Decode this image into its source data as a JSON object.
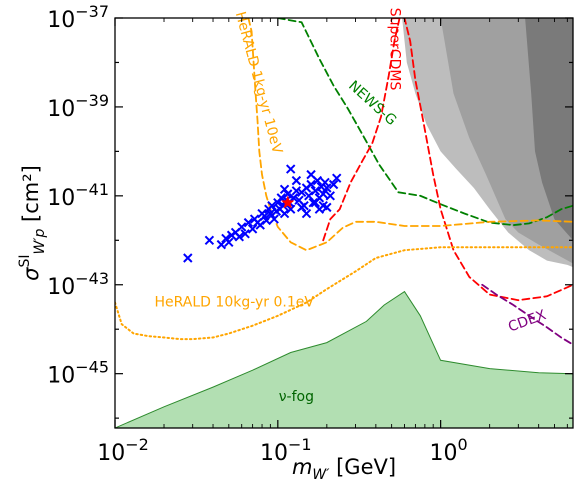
{
  "chart_data": {
    "type": "scatter",
    "title": "",
    "xscale": "log",
    "yscale": "log",
    "xlim": [
      0.01,
      6.5
    ],
    "ylim": [
      6e-47,
      1e-37
    ],
    "grid": false,
    "xlabel": {
      "base": "m",
      "sub": "W′",
      "unit": "[GeV]"
    },
    "ylabel": {
      "base": "σ",
      "sup": "SI",
      "sub": "W′p",
      "unit": "[cm²]"
    },
    "x_ticks": [
      {
        "value": 0.01,
        "base": "10",
        "exp": "−2"
      },
      {
        "value": 0.1,
        "base": "10",
        "exp": "−1"
      },
      {
        "value": 1,
        "base": "10",
        "exp": "0"
      }
    ],
    "y_ticks": [
      {
        "value": 1e-45,
        "base": "10",
        "exp": "−45"
      },
      {
        "value": 1e-43,
        "base": "10",
        "exp": "−43"
      },
      {
        "value": 1e-41,
        "base": "10",
        "exp": "−41"
      },
      {
        "value": 1e-39,
        "base": "10",
        "exp": "−39"
      },
      {
        "value": 1e-37,
        "base": "10",
        "exp": "−37"
      }
    ],
    "colors": {
      "scatter": "#0000ff",
      "benchmark": "#ff0000",
      "newsg": "#008000",
      "supercdms": "#ff0000",
      "herald": "#ffa500",
      "cdex": "#800080",
      "nufog_fill": "#b2dfb2",
      "nufog_edge": "#2e8b2e",
      "excl_light": "#bdbdbd",
      "excl_mid": "#a0a0a0",
      "excl_dark": "#7a7a7a"
    },
    "annotations": [
      {
        "key": "newsg",
        "text": "NEWS-G",
        "color": "#008000",
        "x": 0.38,
        "y": 1.2e-39,
        "rotate": 42
      },
      {
        "key": "supercdms",
        "text": "SuperCDMS",
        "color": "#ff0000",
        "x": 0.52,
        "y": 2e-38,
        "rotate": 90
      },
      {
        "key": "herald1",
        "text": "HeRALD 1kg-yr 10eV",
        "color": "#ffa500",
        "x": 0.076,
        "y": 3.5e-39,
        "rotate": 75
      },
      {
        "key": "herald2",
        "text": "HeRALD 10kg-yr 0.1eV",
        "color": "#ffa500",
        "x": 0.054,
        "y": 4e-44,
        "rotate": 0
      },
      {
        "key": "cdex",
        "text": "CDEX",
        "color": "#800080",
        "x": 3.4,
        "y": 1.5e-44,
        "rotate": -20
      },
      {
        "key": "nufog",
        "text": "ν-fog",
        "color": "#006400",
        "x": 0.13,
        "y": 3e-46,
        "rotate": 0
      }
    ],
    "series": [
      {
        "type": "exclusion-fill",
        "shade": "light",
        "x": [
          0.58,
          6.5,
          6.5,
          6.0,
          4.5,
          3.5,
          2.6,
          2.0,
          1.6,
          1.25,
          1.0,
          0.82,
          0.7,
          0.62,
          0.58
        ],
        "y": [
          1e-37,
          1e-37,
          2.5e-43,
          2.8e-43,
          3.5e-43,
          6e-43,
          1.5e-42,
          5e-42,
          1.5e-41,
          4e-41,
          1e-40,
          4e-40,
          2e-39,
          1e-38,
          1e-37
        ]
      },
      {
        "type": "exclusion-fill",
        "shade": "mid",
        "x": [
          1.0,
          6.5,
          6.5,
          4.0,
          3.0,
          2.5,
          1.9,
          1.5,
          1.2,
          1.0
        ],
        "y": [
          1e-37,
          1e-37,
          3e-43,
          8e-43,
          1.5e-42,
          3e-42,
          3e-41,
          2e-40,
          2e-39,
          1e-37
        ]
      },
      {
        "type": "exclusion-fill",
        "shade": "dark",
        "x": [
          3.3,
          6.5,
          6.5,
          5.0,
          4.2,
          3.8,
          3.6,
          3.3
        ],
        "y": [
          1e-37,
          1e-37,
          1e-42,
          3e-42,
          2e-41,
          1e-40,
          2e-39,
          1e-37
        ]
      },
      {
        "type": "fog",
        "x": [
          0.01,
          0.02,
          0.04,
          0.07,
          0.12,
          0.2,
          0.35,
          0.45,
          0.6,
          0.75,
          1.0,
          2.0,
          4.0,
          6.5
        ],
        "y": [
          6e-47,
          1.8e-46,
          5e-46,
          1.2e-45,
          3e-45,
          5e-45,
          1.5e-44,
          3.5e-44,
          7e-44,
          2e-44,
          2e-45,
          1.3e-45,
          1.05e-45,
          1e-45
        ]
      },
      {
        "type": "line",
        "key": "newsg",
        "style": "dashed",
        "x": [
          0.1,
          0.14,
          0.18,
          0.22,
          0.27,
          0.34,
          0.42,
          0.55,
          0.75,
          1.0,
          1.4,
          2.0,
          2.8,
          3.5,
          4.5,
          5.5,
          6.5
        ],
        "y": [
          1e-37,
          8e-38,
          1.2e-38,
          3e-39,
          9e-40,
          2e-40,
          5e-41,
          1.2e-41,
          1e-41,
          6.5e-42,
          4e-42,
          2.5e-42,
          2.2e-42,
          2.4e-42,
          3.3e-42,
          5e-42,
          6e-42
        ]
      },
      {
        "type": "line",
        "key": "supercdms",
        "style": "dashed",
        "x": [
          0.19,
          0.21,
          0.24,
          0.28,
          0.33,
          0.38,
          0.43,
          0.48,
          0.52,
          0.56,
          0.6,
          0.65,
          0.7,
          0.78,
          0.9,
          1.0,
          1.2,
          1.5,
          2.0,
          3.0,
          4.5,
          6.5
        ],
        "y": [
          1e-42,
          3e-42,
          5e-42,
          2e-41,
          6e-41,
          1.5e-40,
          6e-40,
          5e-39,
          3e-38,
          1e-37,
          1e-37,
          3e-38,
          4e-39,
          5e-40,
          3e-41,
          5e-42,
          6e-43,
          1.5e-43,
          6e-44,
          4.5e-44,
          5.5e-44,
          1e-43
        ]
      },
      {
        "type": "line",
        "key": "herald1",
        "style": "dashed",
        "x": [
          0.066,
          0.069,
          0.071,
          0.073,
          0.075,
          0.077,
          0.08,
          0.085,
          0.09,
          0.1,
          0.12,
          0.15,
          0.2,
          0.25,
          0.3,
          0.4,
          0.6,
          1.0,
          2.0,
          4.0,
          6.5
        ],
        "y": [
          1e-37,
          5e-38,
          1e-38,
          2e-39,
          5e-40,
          1e-40,
          3e-41,
          1e-41,
          5e-42,
          2e-42,
          9e-43,
          6e-43,
          9e-43,
          1.9e-42,
          2.6e-42,
          2.6e-42,
          2.1e-42,
          2.1e-42,
          2.6e-42,
          2.8e-42,
          2.6e-42
        ]
      },
      {
        "type": "line",
        "key": "herald2",
        "style": "dotted",
        "x": [
          0.01,
          0.011,
          0.013,
          0.016,
          0.02,
          0.025,
          0.03,
          0.04,
          0.05,
          0.07,
          0.1,
          0.15,
          0.2,
          0.3,
          0.4,
          0.6,
          1.0,
          2.0,
          4.0,
          6.5
        ],
        "y": [
          4e-44,
          1.3e-44,
          8e-45,
          7e-45,
          6.5e-45,
          6e-45,
          6e-45,
          6.5e-45,
          8e-45,
          1.2e-44,
          2e-44,
          4e-44,
          8e-44,
          2e-43,
          4e-43,
          6e-43,
          7e-43,
          7e-43,
          7e-43,
          7e-43
        ]
      },
      {
        "type": "line",
        "key": "cdex",
        "style": "dashed",
        "x": [
          1.8,
          2.2,
          2.8,
          3.5,
          4.5,
          5.5,
          6.5
        ],
        "y": [
          1e-43,
          6e-44,
          3.5e-44,
          2e-44,
          1.1e-44,
          6.5e-45,
          4.5e-45
        ]
      },
      {
        "type": "scatter",
        "key": "models",
        "marker": "x",
        "x": [
          0.028,
          0.038,
          0.045,
          0.048,
          0.05,
          0.052,
          0.055,
          0.058,
          0.06,
          0.063,
          0.066,
          0.07,
          0.072,
          0.075,
          0.078,
          0.08,
          0.083,
          0.085,
          0.088,
          0.09,
          0.092,
          0.095,
          0.098,
          0.1,
          0.103,
          0.105,
          0.108,
          0.11,
          0.113,
          0.115,
          0.118,
          0.12,
          0.125,
          0.13,
          0.135,
          0.14,
          0.145,
          0.15,
          0.155,
          0.16,
          0.165,
          0.17,
          0.175,
          0.18,
          0.185,
          0.19,
          0.195,
          0.2,
          0.21,
          0.22,
          0.23,
          0.12,
          0.14,
          0.16,
          0.18,
          0.13,
          0.15,
          0.17,
          0.19,
          0.11,
          0.2
        ],
        "y": [
          4e-43,
          1e-42,
          8e-43,
          1.1e-42,
          9e-43,
          1.3e-42,
          1.5e-42,
          1.2e-42,
          2e-42,
          1.4e-42,
          2.5e-42,
          1.8e-42,
          3e-42,
          2.5e-42,
          2.2e-42,
          4e-42,
          3.5e-42,
          2.8e-42,
          5e-42,
          4e-42,
          6e-42,
          3e-42,
          4.5e-42,
          7e-42,
          5e-42,
          9e-42,
          6e-42,
          4e-42,
          8e-42,
          1.1e-41,
          7e-42,
          5e-42,
          9e-42,
          1.3e-41,
          8e-42,
          1.2e-41,
          6e-42,
          1.5e-41,
          1e-41,
          1.8e-41,
          7e-42,
          1.3e-41,
          2.2e-41,
          9e-42,
          1.6e-41,
          1.1e-41,
          2e-41,
          1.5e-41,
          1e-41,
          1.8e-41,
          2.5e-41,
          4e-41,
          5.5e-42,
          3e-41,
          5e-42,
          2.2e-41,
          4e-42,
          7e-42,
          6e-42,
          1.4e-41,
          5.5e-42
        ]
      },
      {
        "type": "scatter",
        "key": "benchmark",
        "marker": "star",
        "x": [
          0.115
        ],
        "y": [
          7e-42
        ]
      }
    ]
  }
}
